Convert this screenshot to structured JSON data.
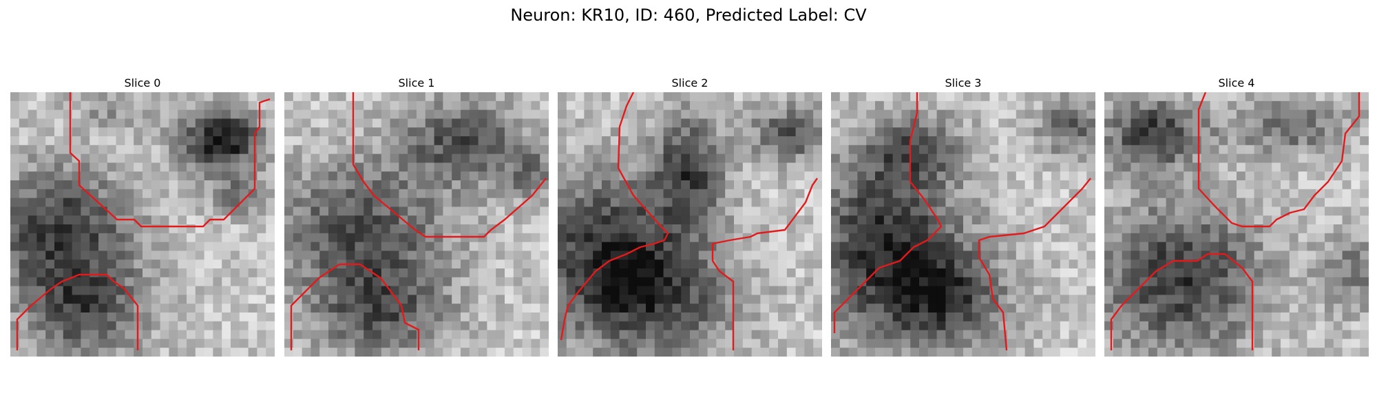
{
  "figure": {
    "title": "Neuron: KR10, ID: 460, Predicted Label: CV"
  },
  "colors": {
    "trace": "#e31a1c",
    "background": "#ffffff"
  },
  "slices": [
    {
      "title": "Slice 0"
    },
    {
      "title": "Slice 1"
    },
    {
      "title": "Slice 2"
    },
    {
      "title": "Slice 3"
    },
    {
      "title": "Slice 4"
    }
  ]
}
